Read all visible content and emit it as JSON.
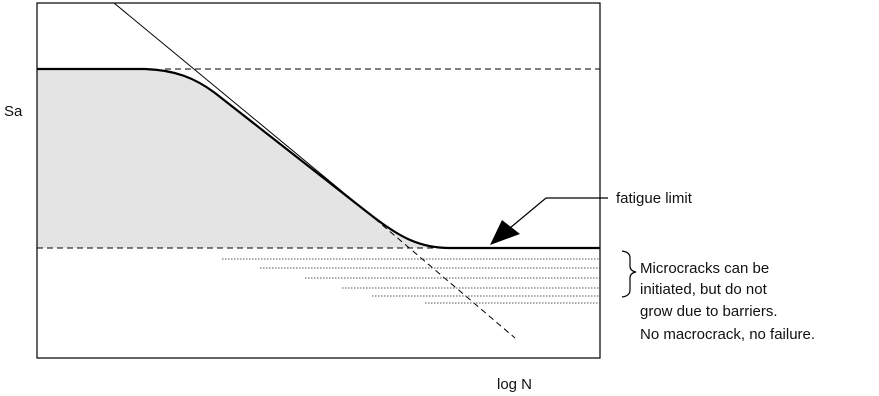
{
  "labels": {
    "y_axis": "Sa",
    "x_axis": "log N",
    "fatigue_limit": "fatigue limit",
    "note_line1": "Microcracks can be",
    "note_line2": "initiated, but do not",
    "note_line3": "grow due to barriers.",
    "note_line4": "No macrocrack, no failure."
  },
  "colors": {
    "curve": "#000000",
    "shaded_region": "#e4e4e4",
    "frame": "#000000"
  }
}
